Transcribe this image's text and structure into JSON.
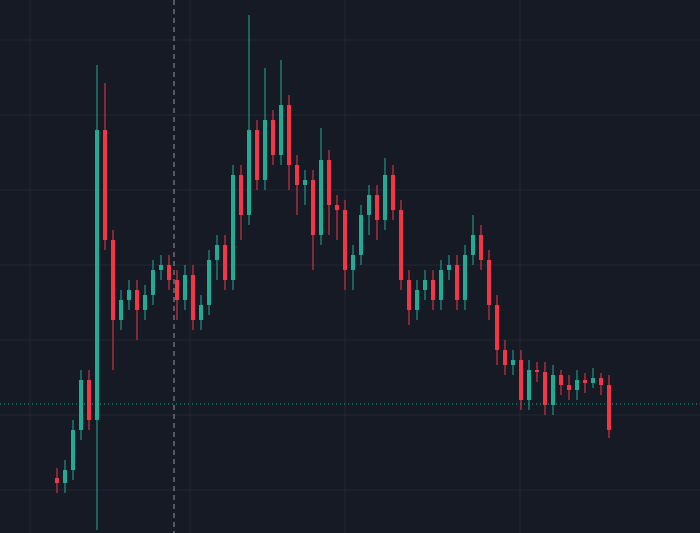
{
  "chart_data": {
    "type": "candlestick",
    "open": [
      55,
      50,
      63,
      103,
      153,
      113,
      403,
      293,
      213,
      233,
      243,
      223,
      238,
      263,
      268,
      253,
      233,
      258,
      213,
      228,
      273,
      288,
      253,
      358,
      318,
      403,
      353,
      413,
      378,
      428,
      368,
      348,
      353,
      298,
      373,
      328,
      323,
      263,
      278,
      318,
      338,
      313,
      358,
      323,
      253,
      223,
      243,
      253,
      233,
      263,
      268,
      233,
      278,
      298,
      273,
      228,
      183,
      168,
      173,
      133,
      163,
      161,
      128,
      158,
      148,
      143,
      153,
      150,
      155,
      148
    ],
    "high": [
      65,
      73,
      113,
      163,
      163,
      468,
      450,
      303,
      243,
      253,
      253,
      248,
      273,
      278,
      278,
      263,
      268,
      268,
      238,
      283,
      298,
      298,
      368,
      368,
      518,
      413,
      465,
      423,
      473,
      438,
      378,
      363,
      363,
      405,
      383,
      338,
      333,
      288,
      328,
      348,
      348,
      375,
      368,
      333,
      263,
      253,
      263,
      263,
      273,
      278,
      278,
      288,
      318,
      308,
      283,
      238,
      193,
      183,
      183,
      173,
      171,
      171,
      168,
      163,
      158,
      163,
      160,
      165,
      160,
      158
    ],
    "low": [
      40,
      40,
      53,
      93,
      103,
      3,
      283,
      163,
      203,
      223,
      193,
      213,
      228,
      253,
      243,
      213,
      223,
      203,
      203,
      218,
      253,
      243,
      243,
      293,
      308,
      343,
      343,
      368,
      368,
      343,
      318,
      328,
      263,
      288,
      298,
      293,
      243,
      243,
      268,
      298,
      293,
      303,
      313,
      243,
      208,
      213,
      233,
      223,
      223,
      253,
      223,
      223,
      268,
      263,
      213,
      168,
      158,
      158,
      123,
      123,
      151,
      118,
      118,
      138,
      133,
      133,
      140,
      145,
      138,
      95
    ],
    "close": [
      50,
      63,
      103,
      153,
      113,
      403,
      293,
      213,
      233,
      243,
      223,
      238,
      263,
      268,
      253,
      233,
      258,
      213,
      228,
      273,
      288,
      253,
      358,
      318,
      403,
      353,
      413,
      378,
      428,
      368,
      348,
      353,
      298,
      373,
      328,
      323,
      263,
      278,
      318,
      338,
      313,
      358,
      323,
      253,
      223,
      243,
      253,
      233,
      263,
      268,
      233,
      278,
      298,
      273,
      228,
      183,
      168,
      173,
      133,
      163,
      161,
      128,
      158,
      148,
      143,
      153,
      150,
      155,
      148,
      103
    ],
    "up_color": "#22ab94",
    "down_color": "#f23645",
    "ylim": [
      0,
      533
    ],
    "grid_y": [
      493,
      418,
      343,
      268,
      193,
      118,
      43
    ],
    "price_line": 129
  }
}
